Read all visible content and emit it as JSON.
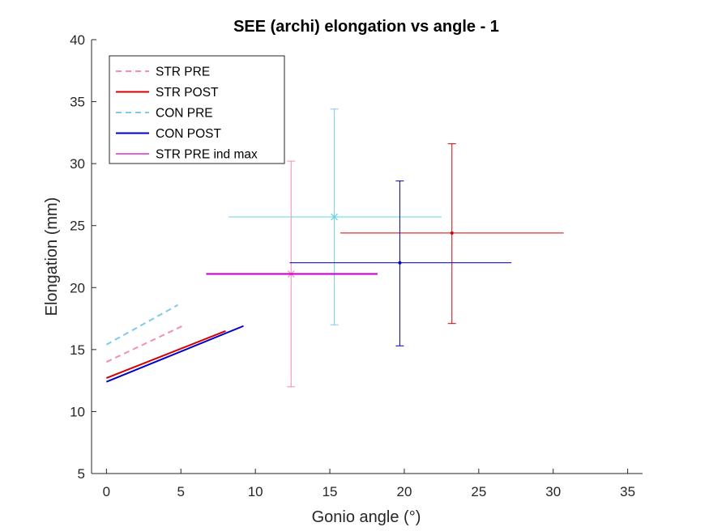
{
  "chart_data": {
    "type": "line",
    "title": "SEE (archi) elongation vs angle - 1",
    "xlabel": "Gonio angle (°)",
    "ylabel": "Elongation (mm)",
    "xlim": [
      -1,
      36
    ],
    "ylim": [
      5,
      40
    ],
    "xticks": [
      0,
      5,
      10,
      15,
      20,
      25,
      30,
      35
    ],
    "yticks": [
      5,
      10,
      15,
      20,
      25,
      30,
      35,
      40
    ],
    "grid": false,
    "legend_position": "top-left",
    "series": [
      {
        "name": "STR PRE",
        "color": "#f28cb8",
        "dash": true,
        "x": [
          0,
          5.1
        ],
        "y": [
          14.0,
          16.9
        ]
      },
      {
        "name": "STR POST",
        "color": "#d40000",
        "dash": false,
        "x": [
          0,
          8.0
        ],
        "y": [
          12.7,
          16.5
        ]
      },
      {
        "name": "CON PRE",
        "color": "#7ec9ec",
        "dash": true,
        "x": [
          0,
          4.8
        ],
        "y": [
          15.4,
          18.6
        ]
      },
      {
        "name": "CON POST",
        "color": "#0000c8",
        "dash": false,
        "x": [
          0,
          9.2
        ],
        "y": [
          12.4,
          16.9
        ]
      },
      {
        "name": "STR PRE ind max",
        "color": "#d000d0",
        "dash": false,
        "x": [
          6.7,
          18.2
        ],
        "y": [
          21.1,
          21.1
        ]
      }
    ],
    "errorbars": [
      {
        "color": "#f28cb8",
        "marker": "x",
        "x": 12.4,
        "y": 21.1,
        "xerr": [
          12.4,
          12.4
        ],
        "yerr": [
          12.0,
          30.2
        ],
        "show_h": false
      },
      {
        "color": "#d40000",
        "marker": "dot",
        "x": 23.2,
        "y": 24.4,
        "xerr": [
          15.7,
          30.7
        ],
        "yerr": [
          17.1,
          31.6
        ],
        "show_h": true
      },
      {
        "color": "#5fd6e0",
        "marker": "x",
        "x": 15.3,
        "y": 25.7,
        "xerr": [
          8.2,
          22.5
        ],
        "yerr": [
          17.0,
          34.4
        ],
        "show_h": true,
        "vcolor": "#7ec9ec"
      },
      {
        "color": "#0000c8",
        "marker": "dot",
        "x": 19.7,
        "y": 22.0,
        "xerr": [
          12.3,
          27.2
        ],
        "yerr": [
          15.3,
          28.6
        ],
        "show_h": true
      }
    ]
  }
}
